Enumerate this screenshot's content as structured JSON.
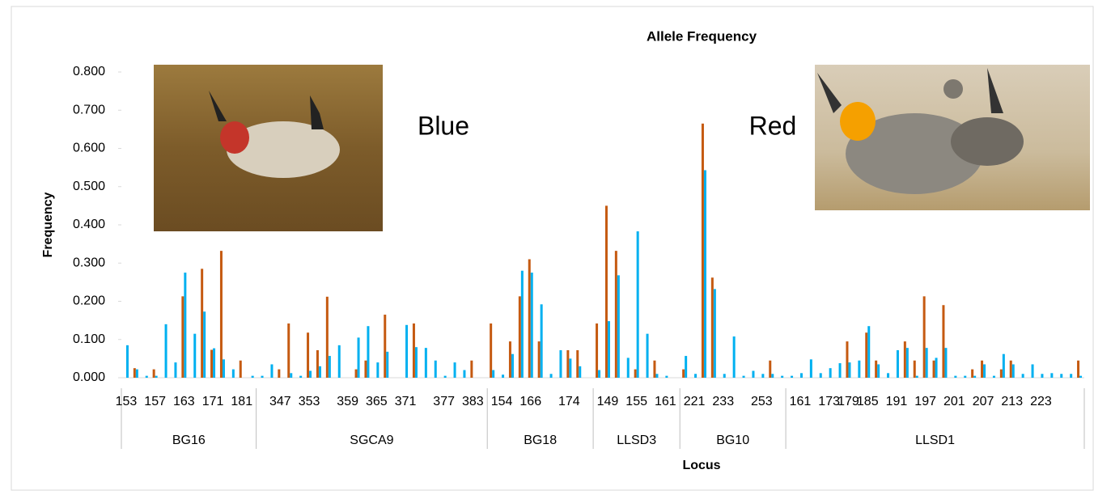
{
  "chart_data": {
    "type": "bar",
    "title": "Allele Frequency",
    "y_label": "Frequency",
    "x_label": "Locus",
    "annotations": [
      "Blue",
      "Red"
    ],
    "loci": [
      {
        "name": "BG16",
        "alleles": [
          153,
          null,
          null,
          157,
          null,
          null,
          163,
          null,
          null,
          171,
          null,
          null,
          181,
          null
        ]
      },
      {
        "name": "SGCA9",
        "alleles": [
          null,
          null,
          347,
          null,
          null,
          353,
          null,
          null,
          null,
          359,
          null,
          null,
          365,
          null,
          null,
          371,
          null,
          null,
          null,
          377,
          null,
          null,
          383,
          null
        ]
      },
      {
        "name": "BG18",
        "alleles": [
          null,
          154,
          null,
          null,
          166,
          null,
          null,
          null,
          174,
          null,
          null
        ]
      },
      {
        "name": "LLSD3",
        "alleles": [
          null,
          149,
          null,
          null,
          155,
          null,
          null,
          161,
          null
        ]
      },
      {
        "name": "BG10",
        "alleles": [
          null,
          221,
          null,
          null,
          233,
          null,
          null,
          null,
          253,
          null,
          null
        ]
      },
      {
        "name": "LLSD1",
        "alleles": [
          null,
          161,
          null,
          null,
          173,
          null,
          179,
          null,
          185,
          null,
          null,
          191,
          null,
          null,
          197,
          null,
          null,
          201,
          null,
          null,
          207,
          null,
          null,
          213,
          null,
          null,
          223,
          null,
          null,
          null,
          null
        ]
      }
    ],
    "series": [
      {
        "color": "#c55a11",
        "values": [
          0,
          0.025,
          0,
          0.022,
          0,
          0,
          0.213,
          0,
          0.285,
          0.073,
          0.332,
          0,
          0.045,
          0,
          0,
          0,
          0.022,
          0.142,
          0,
          0.118,
          0.072,
          0.212,
          0,
          0,
          0.022,
          0.045,
          0,
          0.165,
          0,
          0,
          0.142,
          0,
          0,
          0,
          0,
          0,
          0.045,
          0,
          0.142,
          0,
          0.095,
          0.213,
          0.31,
          0.095,
          0,
          0,
          0.072,
          0.072,
          0,
          0.142,
          0.45,
          0.332,
          0,
          0.022,
          0,
          0.045,
          0,
          0,
          0.022,
          0,
          0.665,
          0.262,
          0,
          0,
          0,
          0,
          0,
          0.045,
          0,
          0,
          0,
          0,
          0,
          0,
          0,
          0.095,
          0,
          0.118,
          0.045,
          0,
          0,
          0.095,
          0.045,
          0.213,
          0.045,
          0.19,
          0,
          0,
          0.022,
          0.045,
          0,
          0.022,
          0.045,
          0,
          0,
          0,
          0,
          0,
          0,
          0.045
        ]
      },
      {
        "color": "#00b0f0",
        "values": [
          0.085,
          0.022,
          0.005,
          0.005,
          0.14,
          0.04,
          0.275,
          0.115,
          0.173,
          0.077,
          0.048,
          0.022,
          0,
          0.005,
          0.005,
          0.035,
          0,
          0.012,
          0.005,
          0.018,
          0.03,
          0.057,
          0.085,
          0,
          0.105,
          0.135,
          0.04,
          0.068,
          0,
          0.138,
          0.08,
          0.078,
          0.045,
          0.005,
          0.04,
          0.02,
          0,
          0,
          0.02,
          0.008,
          0.062,
          0.28,
          0.275,
          0.192,
          0.01,
          0.072,
          0.05,
          0.03,
          0,
          0.02,
          0.148,
          0.268,
          0.052,
          0.383,
          0.115,
          0.01,
          0.005,
          0,
          0.057,
          0.01,
          0.543,
          0.232,
          0.01,
          0.108,
          0.005,
          0.018,
          0.01,
          0.01,
          0.005,
          0.005,
          0.012,
          0.048,
          0.012,
          0.025,
          0.038,
          0.04,
          0.045,
          0.135,
          0.035,
          0.012,
          0.072,
          0.078,
          0.005,
          0.078,
          0.052,
          0.078,
          0.005,
          0.005,
          0.005,
          0.035,
          0.005,
          0.062,
          0.035,
          0.01,
          0.035,
          0.01,
          0.012,
          0.01,
          0.01,
          0.005
        ]
      }
    ],
    "ylim": [
      0,
      0.8
    ],
    "yticks": [
      {
        "value": 0,
        "label": "0.000"
      },
      {
        "value": 0.1,
        "label": "0.100"
      },
      {
        "value": 0.2,
        "label": "0.200"
      },
      {
        "value": 0.3,
        "label": "0.300"
      },
      {
        "value": 0.4,
        "label": "0.400"
      },
      {
        "value": 0.5,
        "label": "0.500"
      },
      {
        "value": 0.6,
        "label": "0.600"
      },
      {
        "value": 0.7,
        "label": "0.700"
      },
      {
        "value": 0.8,
        "label": "0.800"
      }
    ],
    "grid": false
  }
}
